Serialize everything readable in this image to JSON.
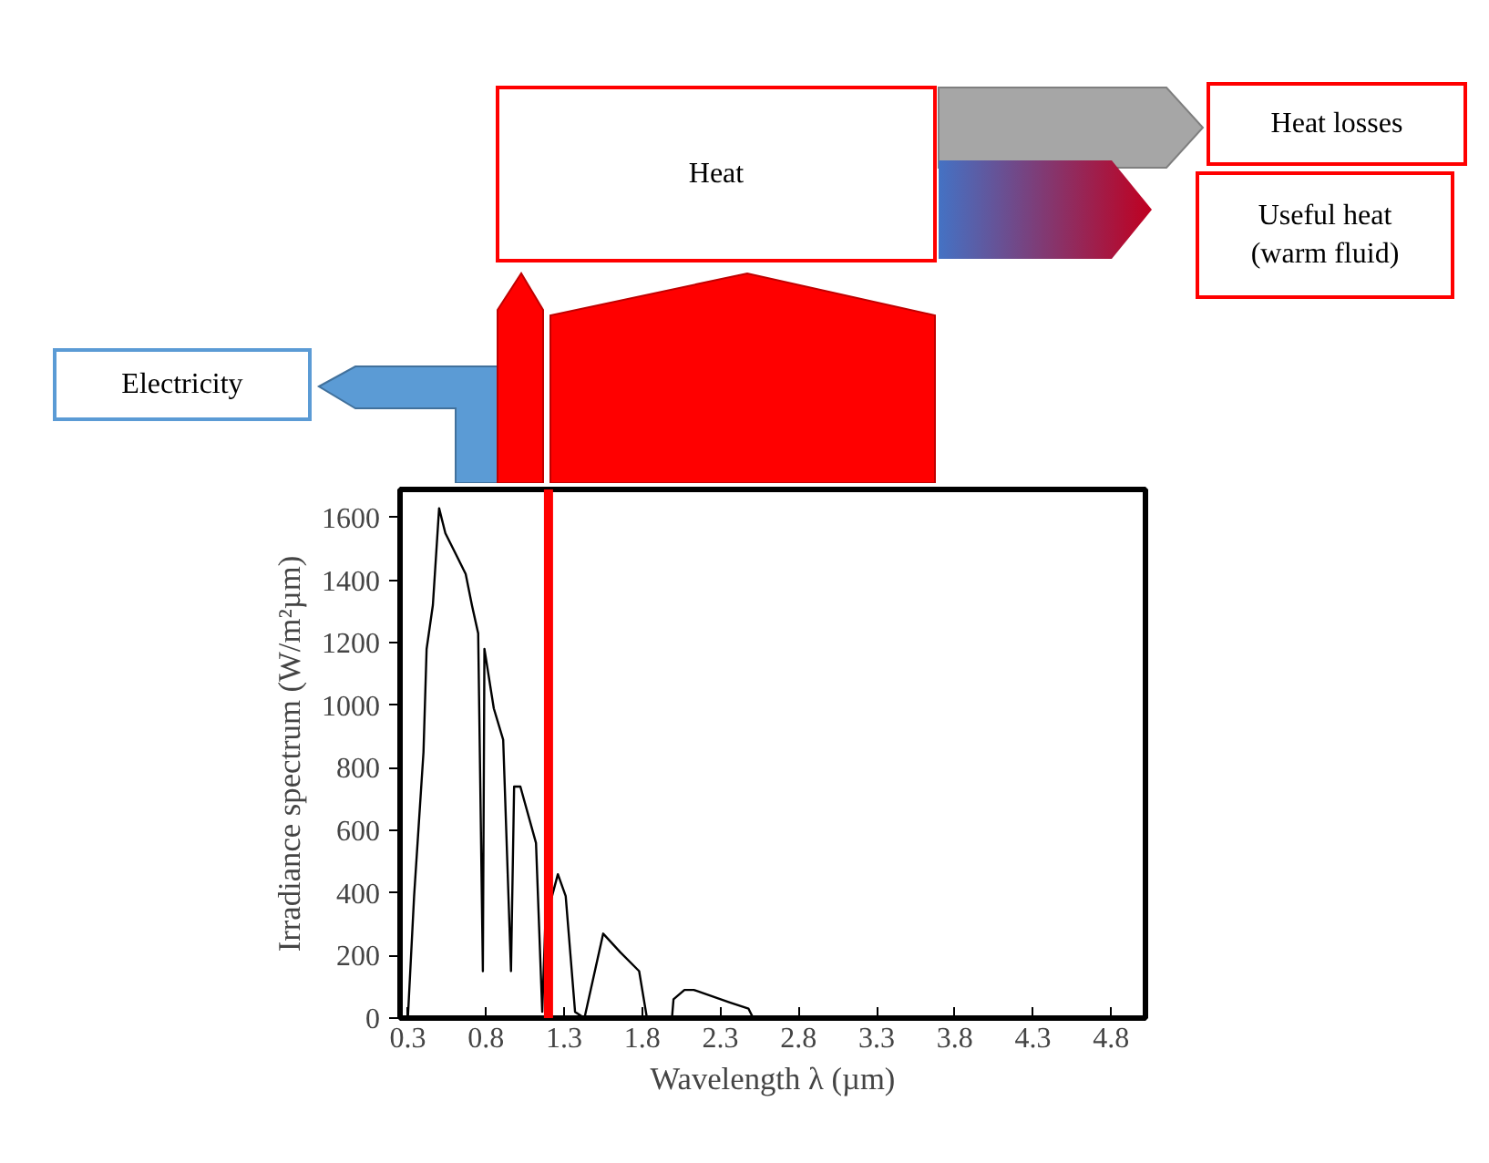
{
  "chart_data": {
    "type": "line",
    "xlabel": "Wavelength λ (µm)",
    "ylabel": "Irradiance spectrum (W/m²µm)",
    "annotations": [
      "Heat",
      "Heat losses",
      "Useful heat\n(warm fluid)",
      "Electricity"
    ],
    "series": [
      {
        "color": "#000000",
        "x": [
          0.3,
          0.34,
          0.4,
          0.42,
          0.46,
          0.5,
          0.54,
          0.61,
          0.67,
          0.71,
          0.75,
          0.78,
          0.79,
          0.85,
          0.91,
          0.96,
          0.98,
          1.02,
          1.12,
          1.16,
          1.18,
          1.26,
          1.31,
          1.37,
          1.43,
          1.55,
          1.66,
          1.78,
          1.83,
          1.99,
          2.0,
          2.07,
          2.13,
          2.36,
          2.48,
          2.51
        ],
        "values": [
          0,
          390,
          850,
          1180,
          1320,
          1630,
          1550,
          1480,
          1420,
          1320,
          1230,
          150,
          1180,
          990,
          890,
          150,
          740,
          740,
          560,
          20,
          310,
          460,
          390,
          20,
          0,
          270,
          210,
          150,
          0,
          0,
          60,
          90,
          90,
          50,
          30,
          0
        ]
      }
    ],
    "xlim": [
      0.25,
      5.02
    ],
    "ylim": [
      0,
      1690
    ],
    "xticks": [
      {
        "value": 0.3,
        "label": "0.3"
      },
      {
        "value": 0.8,
        "label": "0.8"
      },
      {
        "value": 1.3,
        "label": "1.3"
      },
      {
        "value": 1.8,
        "label": "1.8"
      },
      {
        "value": 2.3,
        "label": "2.3"
      },
      {
        "value": 2.8,
        "label": "2.8"
      },
      {
        "value": 3.3,
        "label": "3.3"
      },
      {
        "value": 3.8,
        "label": "3.8"
      },
      {
        "value": 4.3,
        "label": "4.3"
      },
      {
        "value": 4.8,
        "label": "4.8"
      }
    ],
    "yticks": [
      0,
      200,
      400,
      600,
      800,
      1000,
      1200,
      1400,
      1600
    ],
    "ref_lines": [
      {
        "axis": "x",
        "value": 1.2,
        "color": "#ff0000"
      }
    ],
    "grid": false
  }
}
